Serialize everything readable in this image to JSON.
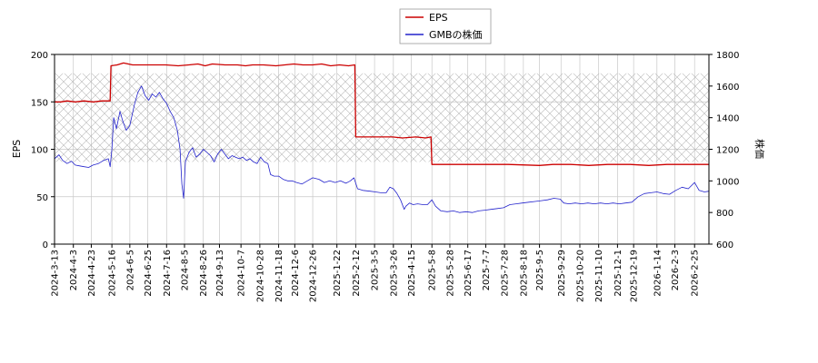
{
  "chart_data": {
    "type": "line",
    "xlabel": "",
    "ylabel_left": "EPS",
    "ylabel_right": "株価",
    "ylim_left": [
      0,
      200
    ],
    "ylim_right": [
      600,
      1800
    ],
    "yticks_left": [
      0,
      50,
      100,
      150,
      200
    ],
    "yticks_right": [
      600,
      800,
      1000,
      1200,
      1400,
      1600,
      1800
    ],
    "grid": true,
    "legend_position": "top-center",
    "hatched_band_right": [
      1120,
      1680
    ],
    "x_range": [
      "2024-03-13",
      "2026-03-13"
    ],
    "x_ticks": [
      "2024-3-13",
      "2024-4-3",
      "2024-4-23",
      "2024-5-16",
      "2024-6-5",
      "2024-6-25",
      "2024-7-16",
      "2024-8-5",
      "2024-8-26",
      "2024-9-13",
      "2024-10-7",
      "2024-10-28",
      "2024-11-18",
      "2024-12-6",
      "2024-12-26",
      "2025-1-22",
      "2025-2-12",
      "2025-3-5",
      "2025-3-26",
      "2025-4-15",
      "2025-5-8",
      "2025-5-28",
      "2025-6-17",
      "2025-7-7",
      "2025-7-28",
      "2025-8-18",
      "2025-9-5",
      "2025-9-29",
      "2025-10-20",
      "2025-11-10",
      "2025-12-1",
      "2025-12-19",
      "2026-1-14",
      "2026-2-3",
      "2026-2-25"
    ],
    "series": [
      {
        "name": "EPS",
        "color": "#cc0000",
        "axis": "left",
        "points": [
          [
            "2024-03-13",
            150
          ],
          [
            "2024-03-20",
            150
          ],
          [
            "2024-03-27",
            151
          ],
          [
            "2024-04-05",
            150
          ],
          [
            "2024-04-15",
            151
          ],
          [
            "2024-04-25",
            150
          ],
          [
            "2024-05-05",
            151
          ],
          [
            "2024-05-14",
            151
          ],
          [
            "2024-05-15",
            188
          ],
          [
            "2024-05-22",
            189
          ],
          [
            "2024-05-29",
            191
          ],
          [
            "2024-06-08",
            189
          ],
          [
            "2024-06-20",
            189
          ],
          [
            "2024-07-01",
            189
          ],
          [
            "2024-07-15",
            189
          ],
          [
            "2024-07-29",
            188
          ],
          [
            "2024-08-10",
            189
          ],
          [
            "2024-08-20",
            190
          ],
          [
            "2024-08-28",
            188
          ],
          [
            "2024-09-05",
            190
          ],
          [
            "2024-09-19",
            189
          ],
          [
            "2024-10-03",
            189
          ],
          [
            "2024-10-12",
            188
          ],
          [
            "2024-10-20",
            189
          ],
          [
            "2024-11-01",
            189
          ],
          [
            "2024-11-15",
            188
          ],
          [
            "2024-11-25",
            189
          ],
          [
            "2024-12-05",
            190
          ],
          [
            "2024-12-15",
            189
          ],
          [
            "2024-12-26",
            189
          ],
          [
            "2025-01-05",
            190
          ],
          [
            "2025-01-15",
            188
          ],
          [
            "2025-01-25",
            189
          ],
          [
            "2025-02-04",
            188
          ],
          [
            "2025-02-11",
            189
          ],
          [
            "2025-02-12",
            113
          ],
          [
            "2025-02-25",
            113
          ],
          [
            "2025-03-10",
            113
          ],
          [
            "2025-03-25",
            113
          ],
          [
            "2025-04-05",
            112
          ],
          [
            "2025-04-20",
            113
          ],
          [
            "2025-05-01",
            112
          ],
          [
            "2025-05-07",
            113
          ],
          [
            "2025-05-08",
            84
          ],
          [
            "2025-06-01",
            84
          ],
          [
            "2025-07-01",
            84
          ],
          [
            "2025-08-01",
            84
          ],
          [
            "2025-09-05",
            83
          ],
          [
            "2025-09-20",
            84
          ],
          [
            "2025-10-10",
            84
          ],
          [
            "2025-10-30",
            83
          ],
          [
            "2025-11-20",
            84
          ],
          [
            "2025-12-15",
            84
          ],
          [
            "2026-01-05",
            83
          ],
          [
            "2026-01-25",
            84
          ],
          [
            "2026-02-15",
            84
          ],
          [
            "2026-03-13",
            84
          ]
        ]
      },
      {
        "name": "GMBの株価",
        "color": "#2222cc",
        "axis": "right",
        "points": [
          [
            "2024-03-13",
            1140
          ],
          [
            "2024-03-18",
            1165
          ],
          [
            "2024-03-22",
            1130
          ],
          [
            "2024-03-27",
            1110
          ],
          [
            "2024-04-01",
            1125
          ],
          [
            "2024-04-05",
            1100
          ],
          [
            "2024-04-10",
            1095
          ],
          [
            "2024-04-15",
            1090
          ],
          [
            "2024-04-20",
            1085
          ],
          [
            "2024-04-25",
            1100
          ],
          [
            "2024-05-01",
            1110
          ],
          [
            "2024-05-07",
            1130
          ],
          [
            "2024-05-12",
            1140
          ],
          [
            "2024-05-14",
            1090
          ],
          [
            "2024-05-16",
            1200
          ],
          [
            "2024-05-18",
            1400
          ],
          [
            "2024-05-21",
            1330
          ],
          [
            "2024-05-25",
            1440
          ],
          [
            "2024-05-28",
            1380
          ],
          [
            "2024-06-01",
            1320
          ],
          [
            "2024-06-05",
            1350
          ],
          [
            "2024-06-10",
            1480
          ],
          [
            "2024-06-14",
            1560
          ],
          [
            "2024-06-18",
            1600
          ],
          [
            "2024-06-22",
            1540
          ],
          [
            "2024-06-26",
            1510
          ],
          [
            "2024-06-30",
            1550
          ],
          [
            "2024-07-04",
            1530
          ],
          [
            "2024-07-08",
            1560
          ],
          [
            "2024-07-12",
            1520
          ],
          [
            "2024-07-16",
            1490
          ],
          [
            "2024-07-20",
            1440
          ],
          [
            "2024-07-24",
            1400
          ],
          [
            "2024-07-28",
            1320
          ],
          [
            "2024-07-31",
            1200
          ],
          [
            "2024-08-02",
            980
          ],
          [
            "2024-08-04",
            890
          ],
          [
            "2024-08-06",
            1120
          ],
          [
            "2024-08-10",
            1180
          ],
          [
            "2024-08-14",
            1210
          ],
          [
            "2024-08-18",
            1150
          ],
          [
            "2024-08-22",
            1170
          ],
          [
            "2024-08-26",
            1200
          ],
          [
            "2024-08-30",
            1180
          ],
          [
            "2024-09-03",
            1160
          ],
          [
            "2024-09-07",
            1120
          ],
          [
            "2024-09-11",
            1170
          ],
          [
            "2024-09-15",
            1200
          ],
          [
            "2024-09-19",
            1170
          ],
          [
            "2024-09-23",
            1140
          ],
          [
            "2024-09-27",
            1160
          ],
          [
            "2024-10-01",
            1150
          ],
          [
            "2024-10-05",
            1140
          ],
          [
            "2024-10-09",
            1150
          ],
          [
            "2024-10-13",
            1130
          ],
          [
            "2024-10-17",
            1140
          ],
          [
            "2024-10-21",
            1120
          ],
          [
            "2024-10-25",
            1110
          ],
          [
            "2024-10-29",
            1150
          ],
          [
            "2024-11-02",
            1120
          ],
          [
            "2024-11-06",
            1110
          ],
          [
            "2024-11-09",
            1040
          ],
          [
            "2024-11-13",
            1030
          ],
          [
            "2024-11-18",
            1030
          ],
          [
            "2024-11-23",
            1010
          ],
          [
            "2024-11-28",
            1000
          ],
          [
            "2024-12-03",
            1000
          ],
          [
            "2024-12-08",
            990
          ],
          [
            "2024-12-14",
            980
          ],
          [
            "2024-12-20",
            1000
          ],
          [
            "2024-12-26",
            1020
          ],
          [
            "2025-01-02",
            1010
          ],
          [
            "2025-01-08",
            990
          ],
          [
            "2025-01-14",
            1000
          ],
          [
            "2025-01-20",
            990
          ],
          [
            "2025-01-26",
            1000
          ],
          [
            "2025-02-01",
            985
          ],
          [
            "2025-02-06",
            1000
          ],
          [
            "2025-02-10",
            1020
          ],
          [
            "2025-02-14",
            950
          ],
          [
            "2025-02-20",
            940
          ],
          [
            "2025-02-28",
            935
          ],
          [
            "2025-03-06",
            930
          ],
          [
            "2025-03-12",
            925
          ],
          [
            "2025-03-18",
            925
          ],
          [
            "2025-03-22",
            960
          ],
          [
            "2025-03-26",
            950
          ],
          [
            "2025-03-30",
            920
          ],
          [
            "2025-04-03",
            880
          ],
          [
            "2025-04-07",
            820
          ],
          [
            "2025-04-09",
            840
          ],
          [
            "2025-04-13",
            860
          ],
          [
            "2025-04-17",
            850
          ],
          [
            "2025-04-22",
            855
          ],
          [
            "2025-04-28",
            850
          ],
          [
            "2025-05-03",
            850
          ],
          [
            "2025-05-08",
            880
          ],
          [
            "2025-05-12",
            840
          ],
          [
            "2025-05-18",
            810
          ],
          [
            "2025-05-25",
            805
          ],
          [
            "2025-06-01",
            810
          ],
          [
            "2025-06-08",
            800
          ],
          [
            "2025-06-15",
            805
          ],
          [
            "2025-06-22",
            800
          ],
          [
            "2025-06-29",
            810
          ],
          [
            "2025-07-06",
            815
          ],
          [
            "2025-07-13",
            820
          ],
          [
            "2025-07-20",
            825
          ],
          [
            "2025-07-27",
            830
          ],
          [
            "2025-08-03",
            850
          ],
          [
            "2025-08-10",
            855
          ],
          [
            "2025-08-17",
            860
          ],
          [
            "2025-08-24",
            865
          ],
          [
            "2025-08-31",
            870
          ],
          [
            "2025-09-07",
            875
          ],
          [
            "2025-09-14",
            880
          ],
          [
            "2025-09-21",
            890
          ],
          [
            "2025-09-28",
            885
          ],
          [
            "2025-10-02",
            860
          ],
          [
            "2025-10-08",
            855
          ],
          [
            "2025-10-15",
            860
          ],
          [
            "2025-10-22",
            855
          ],
          [
            "2025-10-29",
            860
          ],
          [
            "2025-11-05",
            855
          ],
          [
            "2025-11-12",
            860
          ],
          [
            "2025-11-19",
            855
          ],
          [
            "2025-11-26",
            860
          ],
          [
            "2025-12-03",
            855
          ],
          [
            "2025-12-10",
            860
          ],
          [
            "2025-12-17",
            865
          ],
          [
            "2025-12-24",
            900
          ],
          [
            "2025-12-31",
            920
          ],
          [
            "2026-01-07",
            925
          ],
          [
            "2026-01-14",
            930
          ],
          [
            "2026-01-21",
            920
          ],
          [
            "2026-01-28",
            915
          ],
          [
            "2026-02-04",
            940
          ],
          [
            "2026-02-11",
            960
          ],
          [
            "2026-02-18",
            950
          ],
          [
            "2026-02-25",
            990
          ],
          [
            "2026-03-02",
            940
          ],
          [
            "2026-03-08",
            930
          ],
          [
            "2026-03-13",
            935
          ]
        ]
      }
    ]
  }
}
